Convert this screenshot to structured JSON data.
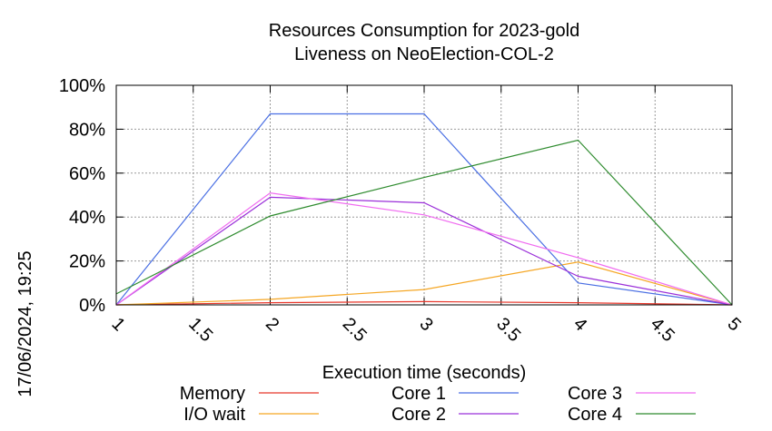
{
  "chart_data": {
    "type": "line",
    "title_line1": "Resources Consumption for 2023-gold",
    "title_line2": "Liveness on NeoElection-COL-2",
    "xlabel": "Execution time (seconds)",
    "ylabel": "",
    "side_label": "17/06/2024, 19:25",
    "xlim": [
      1,
      5
    ],
    "ylim": [
      0,
      100
    ],
    "x_ticks": [
      "1",
      "1.5",
      "2",
      "2.5",
      "3",
      "3.5",
      "4",
      "4.5",
      "5"
    ],
    "y_ticks": [
      "0%",
      "20%",
      "40%",
      "60%",
      "80%",
      "100%"
    ],
    "grid": true,
    "legend_position": "bottom",
    "x": [
      1,
      2,
      3,
      4,
      5
    ],
    "series": [
      {
        "name": "Memory",
        "color": "#e8372b",
        "values": [
          0,
          1,
          1.5,
          1,
          0
        ]
      },
      {
        "name": "I/O wait",
        "color": "#f5a623",
        "values": [
          0,
          2.5,
          7,
          19.5,
          0
        ]
      },
      {
        "name": "Core 1",
        "color": "#4a6fe3",
        "values": [
          0,
          87,
          87,
          10,
          0
        ]
      },
      {
        "name": "Core 2",
        "color": "#9b30d9",
        "values": [
          0,
          49,
          46.5,
          13,
          0
        ]
      },
      {
        "name": "Core 3",
        "color": "#f06cf0",
        "values": [
          0,
          51,
          41,
          21.5,
          0
        ]
      },
      {
        "name": "Core 4",
        "color": "#2e8b2e",
        "values": [
          5,
          40.5,
          58,
          75,
          0
        ]
      }
    ]
  }
}
